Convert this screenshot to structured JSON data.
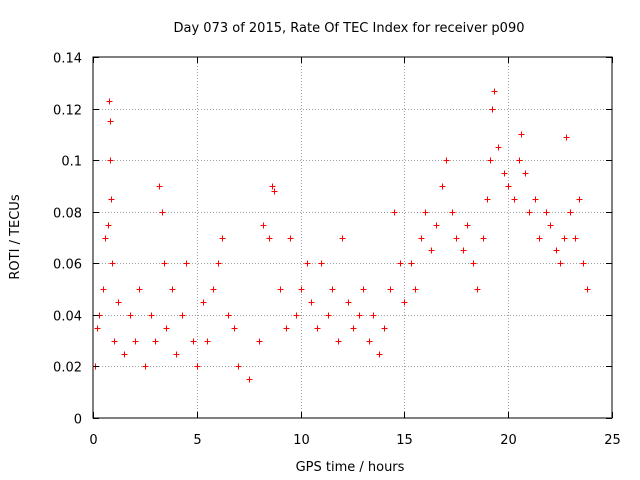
{
  "chart_data": {
    "type": "scatter",
    "title": "Day 073 of 2015, Rate Of TEC Index for receiver p090",
    "xlabel": "GPS time / hours",
    "ylabel": "ROTI / TECUs",
    "xlim": [
      0,
      25
    ],
    "ylim": [
      0,
      0.14
    ],
    "xticks": [
      0,
      5,
      10,
      15,
      20,
      25
    ],
    "yticks": [
      0,
      0.02,
      0.04,
      0.06,
      0.08,
      0.1,
      0.12,
      0.14
    ],
    "xtick_labels": [
      "0",
      "5",
      "10",
      "15",
      "20",
      "25"
    ],
    "ytick_labels": [
      "0",
      "0.02",
      "0.04",
      "0.06",
      "0.08",
      "0.1",
      "0.12",
      "0.14"
    ],
    "grid": true,
    "marker": "+",
    "series": [
      {
        "name": "ROTI",
        "color": "#ff0000",
        "x": [
          0.1,
          0.2,
          0.3,
          0.5,
          0.6,
          0.7,
          0.75,
          0.8,
          0.8,
          0.85,
          0.9,
          1.0,
          1.2,
          1.5,
          1.8,
          2.0,
          2.2,
          2.5,
          2.8,
          3.0,
          3.2,
          3.3,
          3.4,
          3.5,
          3.8,
          4.0,
          4.3,
          4.5,
          4.8,
          5.0,
          5.3,
          5.5,
          5.8,
          6.0,
          6.2,
          6.5,
          6.8,
          7.0,
          7.5,
          8.0,
          8.2,
          8.5,
          8.6,
          8.7,
          9.0,
          9.3,
          9.5,
          9.8,
          10.0,
          10.3,
          10.5,
          10.8,
          11.0,
          11.3,
          11.5,
          11.8,
          12.0,
          12.3,
          12.5,
          12.8,
          13.0,
          13.3,
          13.5,
          13.8,
          14.0,
          14.3,
          14.5,
          14.8,
          15.0,
          15.3,
          15.5,
          15.8,
          16.0,
          16.3,
          16.5,
          16.8,
          17.0,
          17.3,
          17.5,
          17.8,
          18.0,
          18.3,
          18.5,
          18.8,
          19.0,
          19.1,
          19.2,
          19.3,
          19.5,
          19.8,
          20.0,
          20.3,
          20.5,
          20.6,
          20.8,
          21.0,
          21.3,
          21.5,
          21.8,
          22.0,
          22.3,
          22.5,
          22.7,
          22.8,
          23.0,
          23.2,
          23.4,
          23.6,
          23.8
        ],
        "y": [
          0.02,
          0.035,
          0.04,
          0.05,
          0.07,
          0.075,
          0.123,
          0.115,
          0.1,
          0.085,
          0.06,
          0.03,
          0.045,
          0.025,
          0.04,
          0.03,
          0.05,
          0.02,
          0.04,
          0.03,
          0.09,
          0.08,
          0.06,
          0.035,
          0.05,
          0.025,
          0.04,
          0.06,
          0.03,
          0.02,
          0.045,
          0.03,
          0.05,
          0.06,
          0.07,
          0.04,
          0.035,
          0.02,
          0.015,
          0.03,
          0.075,
          0.07,
          0.09,
          0.088,
          0.05,
          0.035,
          0.07,
          0.04,
          0.05,
          0.06,
          0.045,
          0.035,
          0.06,
          0.04,
          0.05,
          0.03,
          0.07,
          0.045,
          0.035,
          0.04,
          0.05,
          0.03,
          0.04,
          0.025,
          0.035,
          0.05,
          0.08,
          0.06,
          0.045,
          0.06,
          0.05,
          0.07,
          0.08,
          0.065,
          0.075,
          0.09,
          0.1,
          0.08,
          0.07,
          0.065,
          0.075,
          0.06,
          0.05,
          0.07,
          0.085,
          0.1,
          0.12,
          0.127,
          0.105,
          0.095,
          0.09,
          0.085,
          0.1,
          0.11,
          0.095,
          0.08,
          0.085,
          0.07,
          0.08,
          0.075,
          0.065,
          0.06,
          0.07,
          0.109,
          0.08,
          0.07,
          0.085,
          0.06,
          0.05
        ]
      }
    ]
  }
}
